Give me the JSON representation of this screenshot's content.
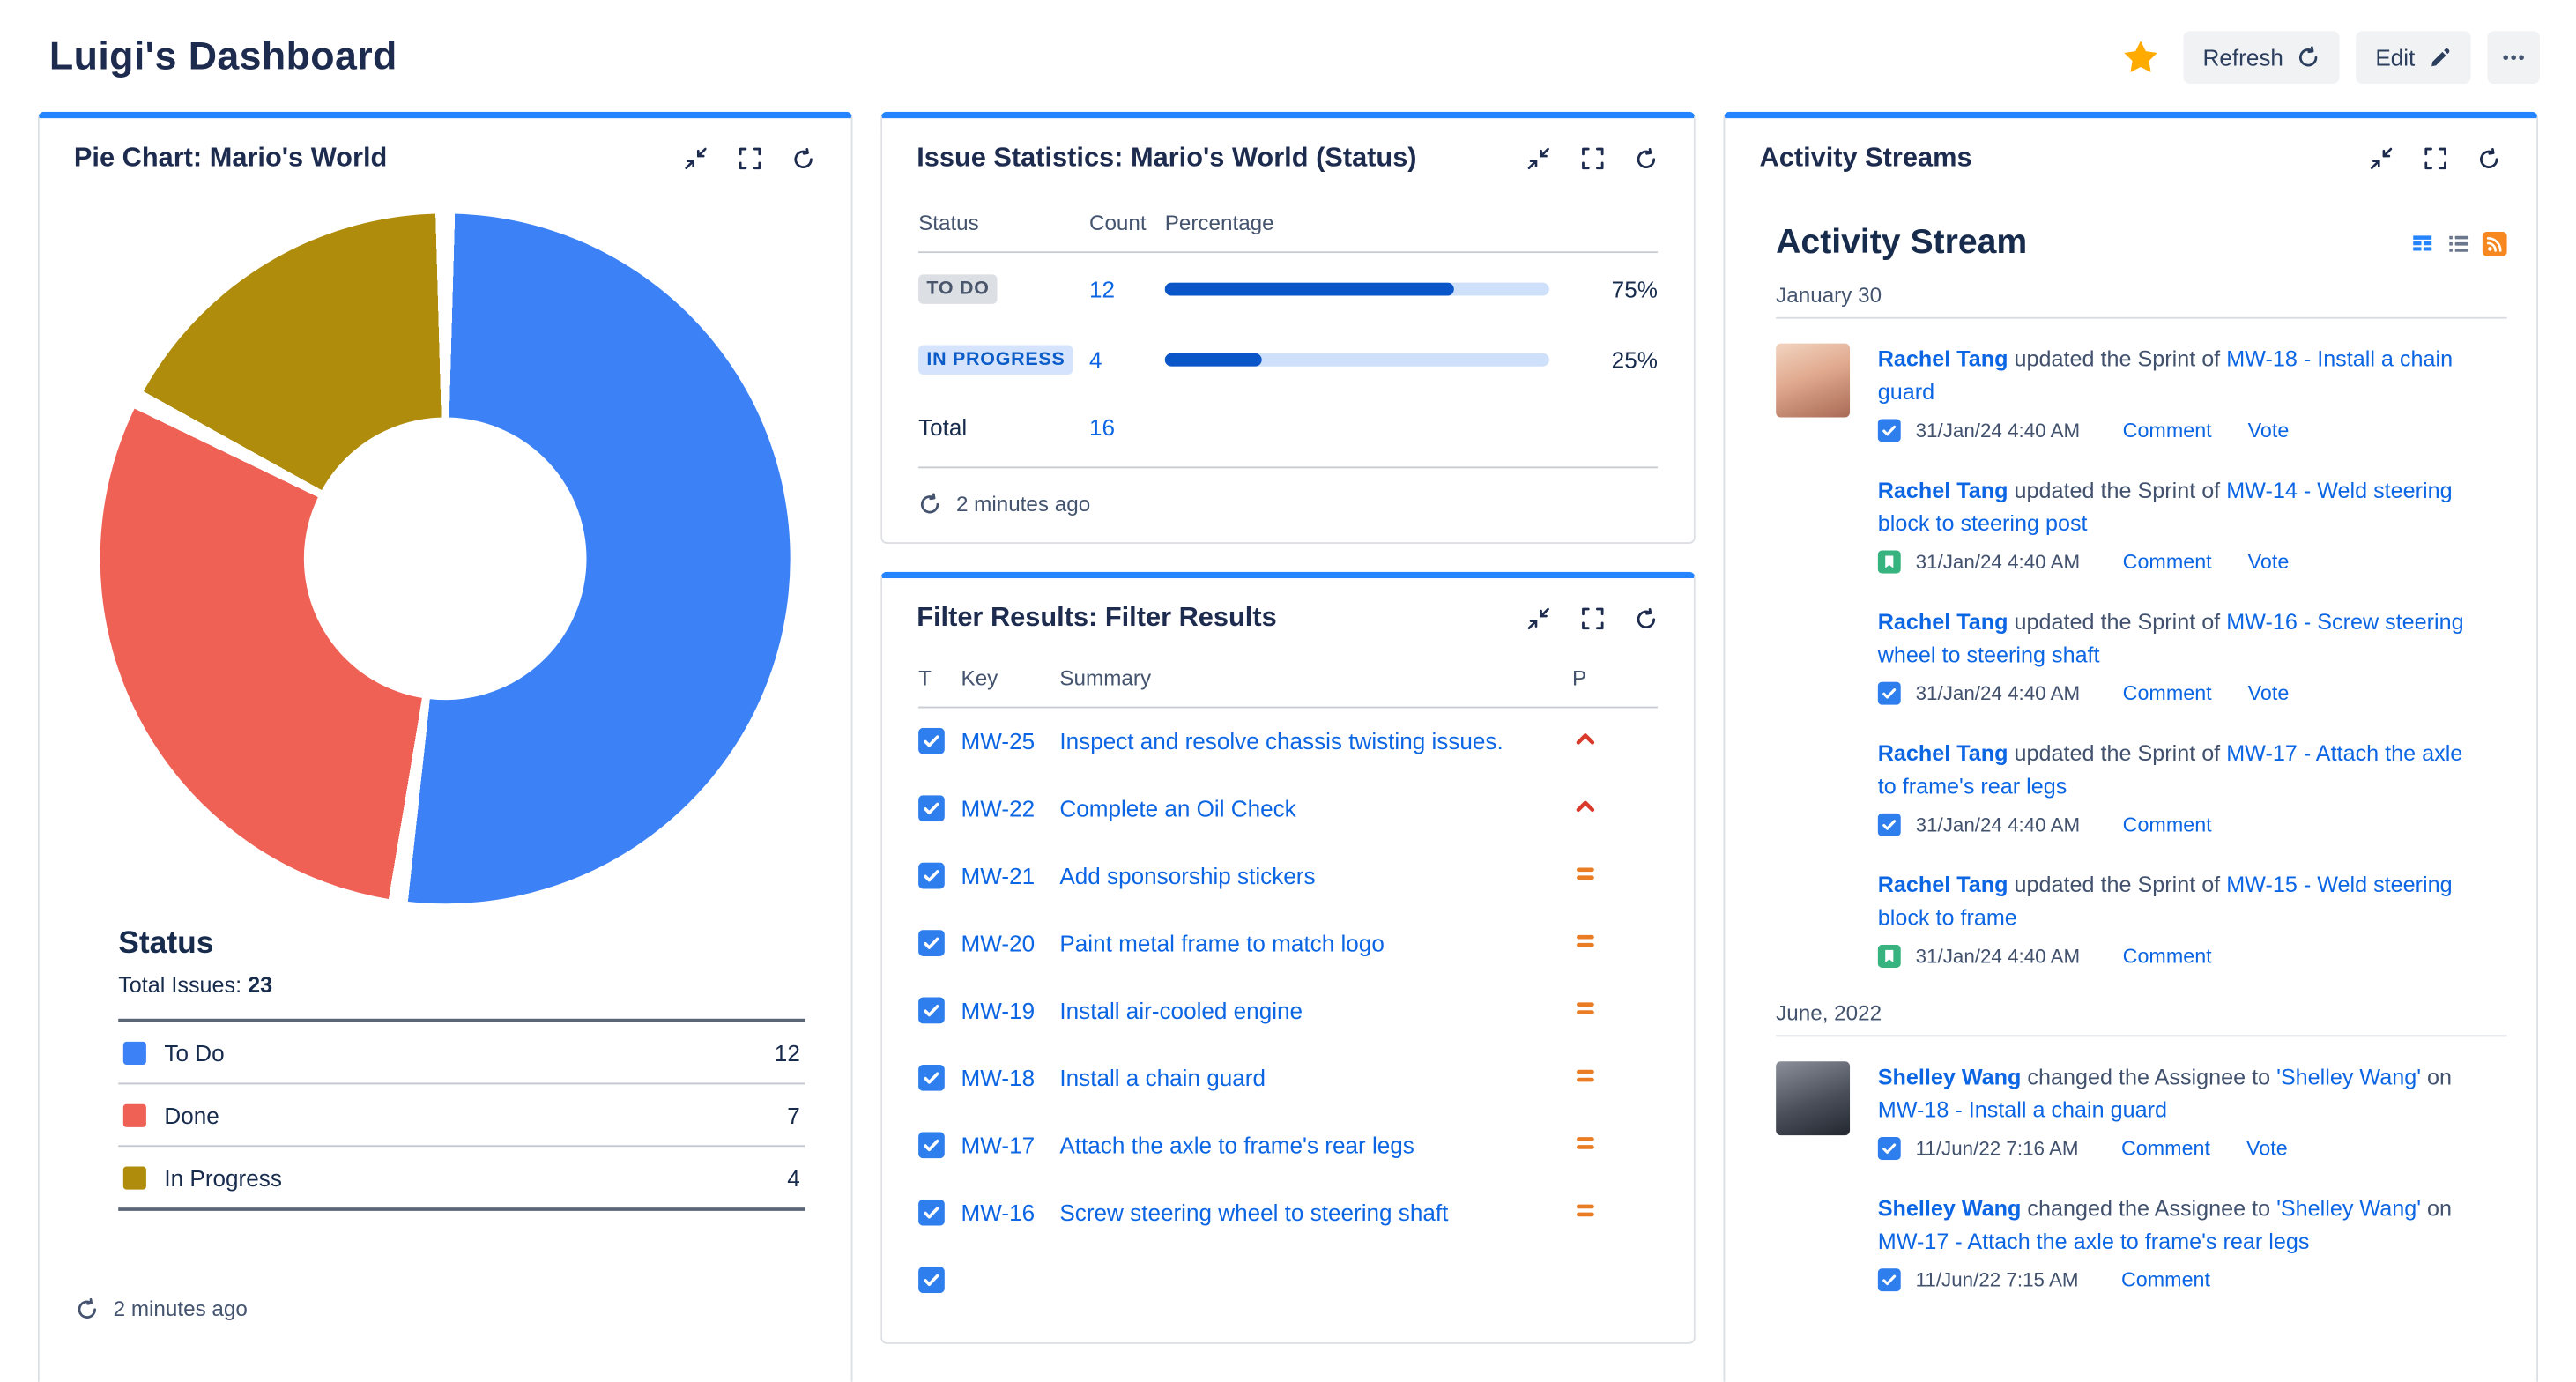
{
  "colors": {
    "gadget_accent": "#2684FF",
    "link": "#0C66E4",
    "bar_fill": "#0A55C8",
    "bar_track": "#CFE0FB",
    "priority_high": "#DA3A2B",
    "priority_medium": "#EA7D24",
    "task_icon": "#2E7EED",
    "story_icon": "#36B37E",
    "star": "#FFAB00"
  },
  "header": {
    "title": "Luigi's Dashboard",
    "refresh_label": "Refresh",
    "edit_label": "Edit"
  },
  "pie_gadget": {
    "title": "Pie Chart: Mario's World",
    "section_label": "Status",
    "total_label": "Total Issues:",
    "total_value": "23",
    "updated": "2 minutes ago",
    "legend": [
      {
        "label": "To Do",
        "value": "12",
        "color": "#3C82F6"
      },
      {
        "label": "Done",
        "value": "7",
        "color": "#EF6055"
      },
      {
        "label": "In Progress",
        "value": "4",
        "color": "#B08C0C"
      }
    ]
  },
  "chart_data": {
    "type": "pie",
    "style": "donut",
    "title": "Status",
    "categories": [
      "To Do",
      "Done",
      "In Progress"
    ],
    "values": [
      12,
      7,
      4
    ],
    "total": 23,
    "colors": [
      "#3C82F6",
      "#EF6055",
      "#B08C0C"
    ],
    "legend_position": "bottom"
  },
  "stats_gadget": {
    "title": "Issue Statistics: Mario's World (Status)",
    "columns": {
      "status": "Status",
      "count": "Count",
      "percentage": "Percentage"
    },
    "rows": [
      {
        "status": "TO DO",
        "badge": "todo",
        "count": "12",
        "percent": 75,
        "percent_label": "75%"
      },
      {
        "status": "IN PROGRESS",
        "badge": "inprogress",
        "count": "4",
        "percent": 25,
        "percent_label": "25%"
      }
    ],
    "total_label": "Total",
    "total_value": "16",
    "updated": "2 minutes ago"
  },
  "filter_gadget": {
    "title": "Filter Results: Filter Results",
    "columns": {
      "type": "T",
      "key": "Key",
      "summary": "Summary",
      "priority": "P"
    },
    "rows": [
      {
        "key": "MW-25",
        "type": "task",
        "summary": "Inspect and resolve chassis twisting issues.",
        "priority": "high"
      },
      {
        "key": "MW-22",
        "type": "task",
        "summary": "Complete an Oil Check",
        "priority": "high"
      },
      {
        "key": "MW-21",
        "type": "task",
        "summary": "Add sponsorship stickers",
        "priority": "medium"
      },
      {
        "key": "MW-20",
        "type": "task",
        "summary": "Paint metal frame to match logo",
        "priority": "medium"
      },
      {
        "key": "MW-19",
        "type": "task",
        "summary": "Install air-cooled engine",
        "priority": "medium"
      },
      {
        "key": "MW-18",
        "type": "task",
        "summary": "Install a chain guard",
        "priority": "medium"
      },
      {
        "key": "MW-17",
        "type": "task",
        "summary": "Attach the axle to frame's rear legs",
        "priority": "medium"
      },
      {
        "key": "MW-16",
        "type": "task",
        "summary": "Screw steering wheel to steering shaft",
        "priority": "medium"
      }
    ]
  },
  "activity_gadget": {
    "panel_title": "Activity Streams",
    "stream_title": "Activity Stream",
    "groups": [
      {
        "date": "January 30",
        "items": [
          {
            "avatar": "rachel",
            "actor": "Rachel Tang",
            "action": " updated the Sprint of ",
            "target": "MW-18 - Install a chain guard",
            "icon": "task",
            "time": "31/Jan/24 4:40 AM",
            "links": [
              "Comment",
              "Vote"
            ]
          },
          {
            "avatar": null,
            "actor": "Rachel Tang",
            "action": " updated the Sprint of ",
            "target": "MW-14 - Weld steering block to steering post",
            "icon": "story",
            "time": "31/Jan/24 4:40 AM",
            "links": [
              "Comment",
              "Vote"
            ]
          },
          {
            "avatar": null,
            "actor": "Rachel Tang",
            "action": " updated the Sprint of ",
            "target": "MW-16 - Screw steering wheel to steering shaft",
            "icon": "task",
            "time": "31/Jan/24 4:40 AM",
            "links": [
              "Comment",
              "Vote"
            ]
          },
          {
            "avatar": null,
            "actor": "Rachel Tang",
            "action": " updated the Sprint of ",
            "target": "MW-17 - Attach the axle to frame's rear legs",
            "icon": "task",
            "time": "31/Jan/24 4:40 AM",
            "links": [
              "Comment"
            ]
          },
          {
            "avatar": null,
            "actor": "Rachel Tang",
            "action": " updated the Sprint of ",
            "target": "MW-15 - Weld steering block to frame",
            "icon": "story",
            "time": "31/Jan/24 4:40 AM",
            "links": [
              "Comment"
            ]
          }
        ]
      },
      {
        "date": "June, 2022",
        "items": [
          {
            "avatar": "shelley",
            "actor": "Shelley Wang",
            "action": " changed the Assignee to ",
            "assignee_link": "'Shelley Wang'",
            "action2": " on ",
            "target": "MW-18 - Install a chain guard",
            "icon": "task",
            "time": "11/Jun/22 7:16 AM",
            "links": [
              "Comment",
              "Vote"
            ]
          },
          {
            "avatar": null,
            "actor": "Shelley Wang",
            "action": " changed the Assignee to ",
            "assignee_link": "'Shelley Wang'",
            "action2": " on ",
            "target": "MW-17 - Attach the axle to frame's rear legs",
            "icon": "task",
            "time": "11/Jun/22 7:15 AM",
            "links": [
              "Comment"
            ]
          }
        ]
      }
    ]
  }
}
